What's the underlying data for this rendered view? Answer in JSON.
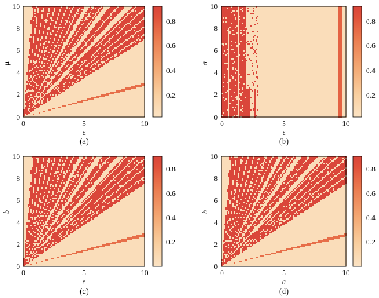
{
  "figure": {
    "colormap": [
      "#fbe3c4",
      "#f9cfa0",
      "#f3a772",
      "#eb7c50",
      "#e0523b",
      "#d9443a"
    ],
    "colorbar_ticks": [
      "0.2",
      "0.4",
      "0.6",
      "0.8"
    ]
  },
  "chart_data": [
    {
      "type": "heatmap",
      "panel_label": "(a)",
      "xlabel": "ε",
      "ylabel": "μ",
      "xlim": [
        0,
        10
      ],
      "ylim": [
        0,
        10
      ],
      "xticks": [
        "0",
        "5",
        "10"
      ],
      "yticks": [
        "0",
        "2",
        "4",
        "6",
        "8",
        "10"
      ],
      "colorbar": {
        "range": [
          0,
          0.9
        ],
        "ticks": [
          0.2,
          0.4,
          0.6,
          0.8
        ]
      },
      "pattern": "fan",
      "regions": {
        "chaotic_fan_slope_range": [
          0.7,
          14
        ],
        "gap_slopes": [
          1.9,
          1.45,
          1.15
        ],
        "lower_band_slopes": [
          0.28,
          0.31
        ],
        "lower_band_value": 0.6,
        "chaotic_value": 0.88,
        "regular_value": 0.05
      }
    },
    {
      "type": "heatmap",
      "panel_label": "(b)",
      "xlabel": "ε",
      "ylabel": "a",
      "xlim": [
        0,
        10
      ],
      "ylim": [
        0,
        10
      ],
      "xticks": [
        "0",
        "5",
        "10"
      ],
      "yticks": [
        "0",
        "2",
        "4",
        "6",
        "8",
        "10"
      ],
      "colorbar": {
        "range": [
          0,
          0.9
        ],
        "ticks": [
          0.2,
          0.4,
          0.6,
          0.8
        ]
      },
      "pattern": "vertical-bands",
      "regions": {
        "chaotic_x_range": [
          0,
          2.0
        ],
        "mixed_x_range": [
          2.0,
          3.0
        ],
        "regular_x_range": [
          3.0,
          9.4
        ],
        "right_band_x_range": [
          9.4,
          9.75
        ],
        "right_band_value": 0.65,
        "chaotic_value": 0.88,
        "regular_value": 0.05
      }
    },
    {
      "type": "heatmap",
      "panel_label": "(c)",
      "xlabel": "ε",
      "ylabel": "b",
      "xlim": [
        0,
        10
      ],
      "ylim": [
        0,
        10
      ],
      "xticks": [
        "0",
        "5",
        "10"
      ],
      "yticks": [
        "0",
        "2",
        "4",
        "6",
        "8",
        "10"
      ],
      "colorbar": {
        "range": [
          0,
          0.9
        ],
        "ticks": [
          0.2,
          0.4,
          0.6,
          0.8
        ]
      },
      "pattern": "fan",
      "regions": {
        "chaotic_fan_slope_range": [
          0.75,
          14
        ],
        "gap_slopes": [
          2.1,
          1.6,
          1.25
        ],
        "lower_band_slopes": [
          0.27,
          0.3
        ],
        "lower_band_value": 0.6,
        "chaotic_value": 0.88,
        "regular_value": 0.05
      }
    },
    {
      "type": "heatmap",
      "panel_label": "(d)",
      "xlabel": "a",
      "ylabel": "b",
      "xlim": [
        0,
        10
      ],
      "ylim": [
        0,
        10
      ],
      "xticks": [
        "0",
        "5",
        "10"
      ],
      "yticks": [
        "0",
        "2",
        "4",
        "6",
        "8",
        "10"
      ],
      "colorbar": {
        "range": [
          0,
          0.9
        ],
        "ticks": [
          0.2,
          0.4,
          0.6,
          0.8
        ]
      },
      "pattern": "fan",
      "regions": {
        "chaotic_fan_slope_range": [
          0.75,
          14
        ],
        "gap_slopes": [
          2.1,
          1.6,
          1.25
        ],
        "lower_band_slopes": [
          0.27,
          0.3
        ],
        "lower_band_value": 0.6,
        "chaotic_value": 0.88,
        "regular_value": 0.05
      }
    }
  ]
}
